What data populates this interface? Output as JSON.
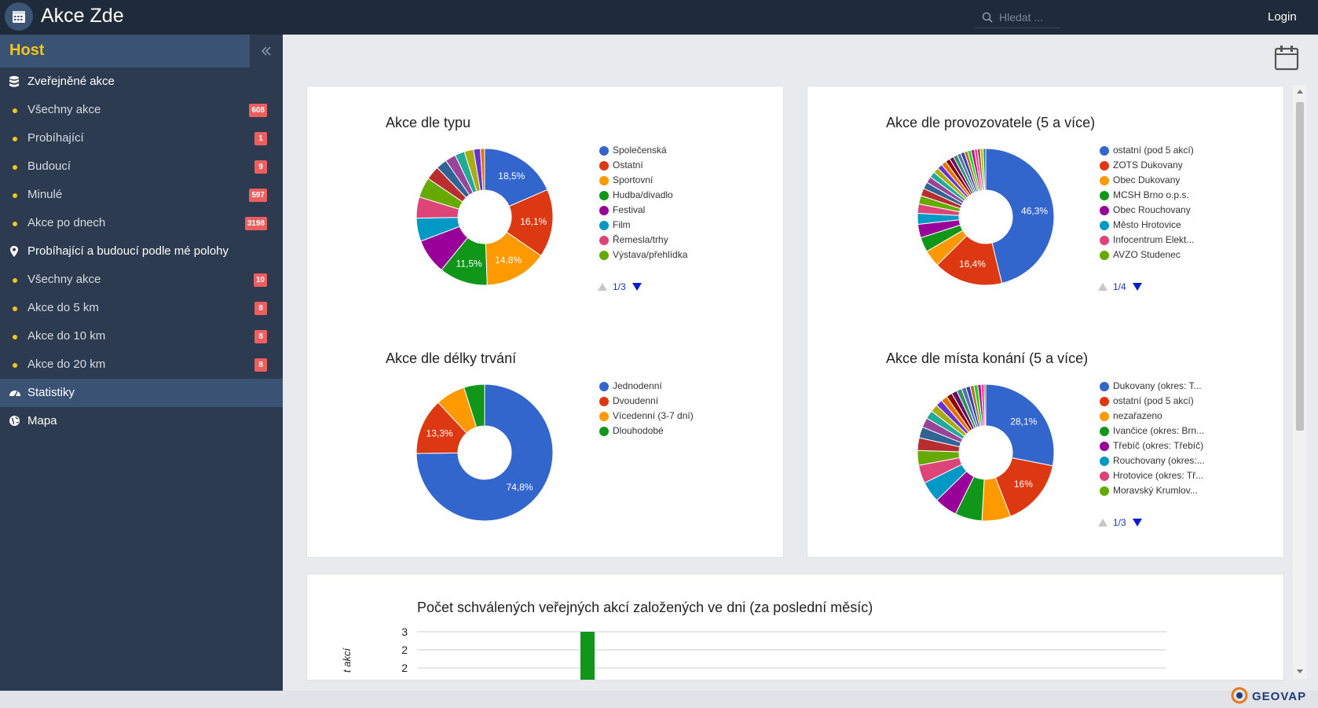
{
  "app": {
    "title": "Akce Zde",
    "login_label": "Login",
    "search_placeholder": "Hledat ..."
  },
  "sidebar": {
    "heading": "Host",
    "sections": [
      {
        "label": "Zveřejněné akce",
        "icon": "database-icon"
      },
      {
        "label": "Probíhající a budoucí podle mé polohy",
        "icon": "map-marker-icon"
      },
      {
        "label": "Statistiky",
        "icon": "dashboard-icon",
        "active": true
      },
      {
        "label": "Mapa",
        "icon": "globe-icon"
      }
    ],
    "published": [
      {
        "label": "Všechny akce",
        "count": "608"
      },
      {
        "label": "Probíhající",
        "count": "1"
      },
      {
        "label": "Budoucí",
        "count": "9"
      },
      {
        "label": "Minulé",
        "count": "597"
      },
      {
        "label": "Akce po dnech",
        "count": "3198"
      }
    ],
    "nearby": [
      {
        "label": "Všechny akce",
        "count": "10"
      },
      {
        "label": "Akce do 5 km",
        "count": "8"
      },
      {
        "label": "Akce do 10 km",
        "count": "8"
      },
      {
        "label": "Akce do 20 km",
        "count": "8"
      }
    ]
  },
  "brand": {
    "footer_logo": "GEOVAP"
  },
  "chart_data": [
    {
      "type": "pie",
      "title": "Akce dle typu",
      "donut": true,
      "legend": [
        "Společenská",
        "Ostatní",
        "Sportovní",
        "Hudba/divadlo",
        "Festival",
        "Film",
        "Řemesla/trhy",
        "Výstava/přehlídka"
      ],
      "pager": "1/3",
      "slices": [
        {
          "value": 18.5,
          "label": "18,5%",
          "color": "#3366cc"
        },
        {
          "value": 16.1,
          "label": "16,1%",
          "color": "#dc3912"
        },
        {
          "value": 14.8,
          "label": "14,8%",
          "color": "#ff9900"
        },
        {
          "value": 11.5,
          "label": "11,5%",
          "color": "#109618"
        },
        {
          "value": 8.3,
          "label": "",
          "color": "#990099"
        },
        {
          "value": 5.5,
          "label": "",
          "color": "#0099c6"
        },
        {
          "value": 5.0,
          "label": "",
          "color": "#dd4477"
        },
        {
          "value": 4.8,
          "label": "",
          "color": "#66aa00"
        },
        {
          "value": 3.3,
          "label": "",
          "color": "#b82e2e"
        },
        {
          "value": 2.6,
          "label": "",
          "color": "#316395"
        },
        {
          "value": 2.5,
          "label": "",
          "color": "#994499"
        },
        {
          "value": 2.3,
          "label": "",
          "color": "#22aa99"
        },
        {
          "value": 2.2,
          "label": "",
          "color": "#aaaa11"
        },
        {
          "value": 1.6,
          "label": "",
          "color": "#6633cc"
        },
        {
          "value": 1.0,
          "label": "",
          "color": "#e67300"
        }
      ]
    },
    {
      "type": "pie",
      "title": "Akce dle provozovatele (5 a více)",
      "donut": true,
      "legend": [
        "ostatní (pod 5 akcí)",
        "ZOTS Dukovany",
        "Obec Dukovany",
        "MCSH Brno o.p.s.",
        "Obec Rouchovany",
        "Město Hrotovice",
        "Infocentrum Elekt...",
        "AVZO Studenec"
      ],
      "pager": "1/4",
      "slices": [
        {
          "value": 46.3,
          "label": "46,3%",
          "color": "#3366cc"
        },
        {
          "value": 16.4,
          "label": "16,4%",
          "color": "#dc3912"
        },
        {
          "value": 4.0,
          "label": "",
          "color": "#ff9900"
        },
        {
          "value": 3.5,
          "label": "",
          "color": "#109618"
        },
        {
          "value": 3.2,
          "label": "",
          "color": "#990099"
        },
        {
          "value": 2.6,
          "label": "",
          "color": "#0099c6"
        },
        {
          "value": 2.2,
          "label": "",
          "color": "#dd4477"
        },
        {
          "value": 2.0,
          "label": "",
          "color": "#66aa00"
        },
        {
          "value": 1.8,
          "label": "",
          "color": "#b82e2e"
        },
        {
          "value": 1.6,
          "label": "",
          "color": "#316395"
        },
        {
          "value": 1.5,
          "label": "",
          "color": "#994499"
        },
        {
          "value": 1.4,
          "label": "",
          "color": "#22aa99"
        },
        {
          "value": 1.3,
          "label": "",
          "color": "#aaaa11"
        },
        {
          "value": 1.2,
          "label": "",
          "color": "#6633cc"
        },
        {
          "value": 1.2,
          "label": "",
          "color": "#e67300"
        },
        {
          "value": 1.1,
          "label": "",
          "color": "#8b0707"
        },
        {
          "value": 1.0,
          "label": "",
          "color": "#651067"
        },
        {
          "value": 1.0,
          "label": "",
          "color": "#329262"
        },
        {
          "value": 0.9,
          "label": "",
          "color": "#5574a6"
        },
        {
          "value": 0.9,
          "label": "",
          "color": "#3b3eac"
        },
        {
          "value": 0.8,
          "label": "",
          "color": "#b77322"
        },
        {
          "value": 0.8,
          "label": "",
          "color": "#16d620"
        },
        {
          "value": 0.8,
          "label": "",
          "color": "#b91383"
        },
        {
          "value": 0.7,
          "label": "",
          "color": "#f4359e"
        },
        {
          "value": 0.7,
          "label": "",
          "color": "#9c5935"
        },
        {
          "value": 0.7,
          "label": "",
          "color": "#a9c413"
        },
        {
          "value": 0.6,
          "label": "",
          "color": "#2a778d"
        }
      ]
    },
    {
      "type": "pie",
      "title": "Akce dle délky trvání",
      "donut": true,
      "legend": [
        "Jednodenní",
        "Dvoudenní",
        "Vícedenní (3-7 dní)",
        "Dlouhodobé"
      ],
      "slices": [
        {
          "value": 74.8,
          "label": "74,8%",
          "color": "#3366cc"
        },
        {
          "value": 13.3,
          "label": "13,3%",
          "color": "#dc3912"
        },
        {
          "value": 7.0,
          "label": "",
          "color": "#ff9900"
        },
        {
          "value": 4.9,
          "label": "",
          "color": "#109618"
        }
      ]
    },
    {
      "type": "pie",
      "title": "Akce dle místa konání (5 a více)",
      "donut": true,
      "legend": [
        "Dukovany (okres: T...",
        "ostatní (pod 5 akcí)",
        "nezařazeno",
        "Ivančice (okres: Brn...",
        "Třebíč (okres: Třebíč)",
        "Rouchovany (okres:...",
        "Hrotovice (okres: Tř...",
        "Moravský Krumlov..."
      ],
      "pager": "1/3",
      "slices": [
        {
          "value": 28.1,
          "label": "28,1%",
          "color": "#3366cc"
        },
        {
          "value": 16.0,
          "label": "16%",
          "color": "#dc3912"
        },
        {
          "value": 6.8,
          "label": "",
          "color": "#ff9900"
        },
        {
          "value": 6.4,
          "label": "",
          "color": "#109618"
        },
        {
          "value": 5.4,
          "label": "",
          "color": "#990099"
        },
        {
          "value": 5.0,
          "label": "",
          "color": "#0099c6"
        },
        {
          "value": 4.3,
          "label": "",
          "color": "#dd4477"
        },
        {
          "value": 3.5,
          "label": "",
          "color": "#66aa00"
        },
        {
          "value": 3.0,
          "label": "",
          "color": "#b82e2e"
        },
        {
          "value": 2.6,
          "label": "",
          "color": "#316395"
        },
        {
          "value": 2.3,
          "label": "",
          "color": "#994499"
        },
        {
          "value": 2.0,
          "label": "",
          "color": "#22aa99"
        },
        {
          "value": 1.8,
          "label": "",
          "color": "#aaaa11"
        },
        {
          "value": 1.6,
          "label": "",
          "color": "#6633cc"
        },
        {
          "value": 1.5,
          "label": "",
          "color": "#e67300"
        },
        {
          "value": 1.4,
          "label": "",
          "color": "#8b0707"
        },
        {
          "value": 1.3,
          "label": "",
          "color": "#651067"
        },
        {
          "value": 1.2,
          "label": "",
          "color": "#329262"
        },
        {
          "value": 1.1,
          "label": "",
          "color": "#5574a6"
        },
        {
          "value": 1.0,
          "label": "",
          "color": "#3b3eac"
        },
        {
          "value": 0.9,
          "label": "",
          "color": "#b77322"
        },
        {
          "value": 0.9,
          "label": "",
          "color": "#16d620"
        },
        {
          "value": 0.8,
          "label": "",
          "color": "#b91383"
        },
        {
          "value": 0.7,
          "label": "",
          "color": "#f4359e"
        },
        {
          "value": 0.4,
          "label": "",
          "color": "#9c5935"
        }
      ]
    },
    {
      "type": "bar",
      "title": "Počet schválených veřejných akcí založených ve dni (za poslední měsíc)",
      "ylabel": "t akcí",
      "y_tick_labels": [
        "3",
        "2",
        "2"
      ],
      "visible_bars": [
        {
          "value": 3,
          "color": "#109618"
        }
      ]
    }
  ]
}
